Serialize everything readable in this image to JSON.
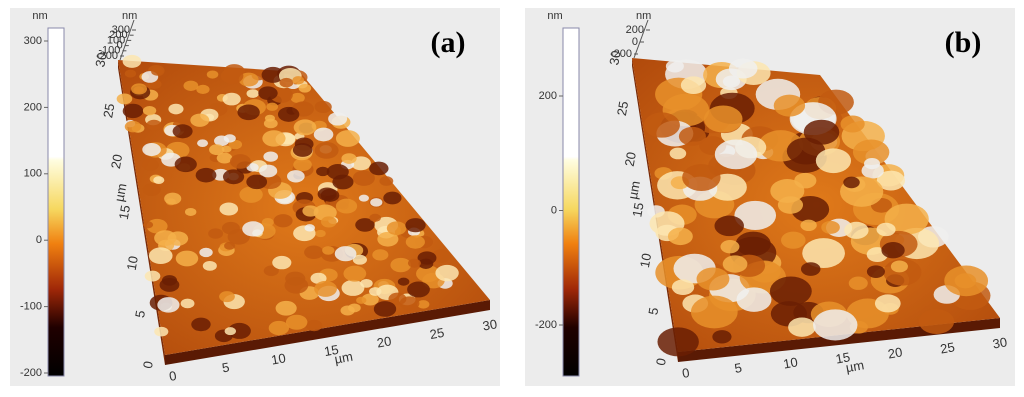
{
  "panels": [
    {
      "label": "(a)",
      "colorbar": {
        "unit": "nm",
        "ticks": [
          300,
          200,
          100,
          0,
          -100,
          -200
        ]
      },
      "z_axis": {
        "unit": "nm",
        "ticks": [
          300,
          200,
          100,
          0,
          -100,
          -200
        ]
      },
      "y_axis": {
        "unit": "µm",
        "ticks": [
          0,
          5,
          10,
          15,
          20,
          25,
          30
        ]
      },
      "x_axis": {
        "unit": "µm",
        "ticks": [
          0,
          5,
          10,
          15,
          20,
          25,
          30
        ]
      }
    },
    {
      "label": "(b)",
      "colorbar": {
        "unit": "nm",
        "ticks": [
          200,
          0,
          -200
        ]
      },
      "z_axis": {
        "unit": "nm",
        "ticks": [
          200,
          0,
          -200
        ]
      },
      "y_axis": {
        "unit": "µm",
        "ticks": [
          0,
          5,
          10,
          15,
          20,
          25,
          30
        ]
      },
      "x_axis": {
        "unit": "µm",
        "ticks": [
          0,
          5,
          10,
          15,
          20,
          25,
          30
        ]
      }
    }
  ]
}
